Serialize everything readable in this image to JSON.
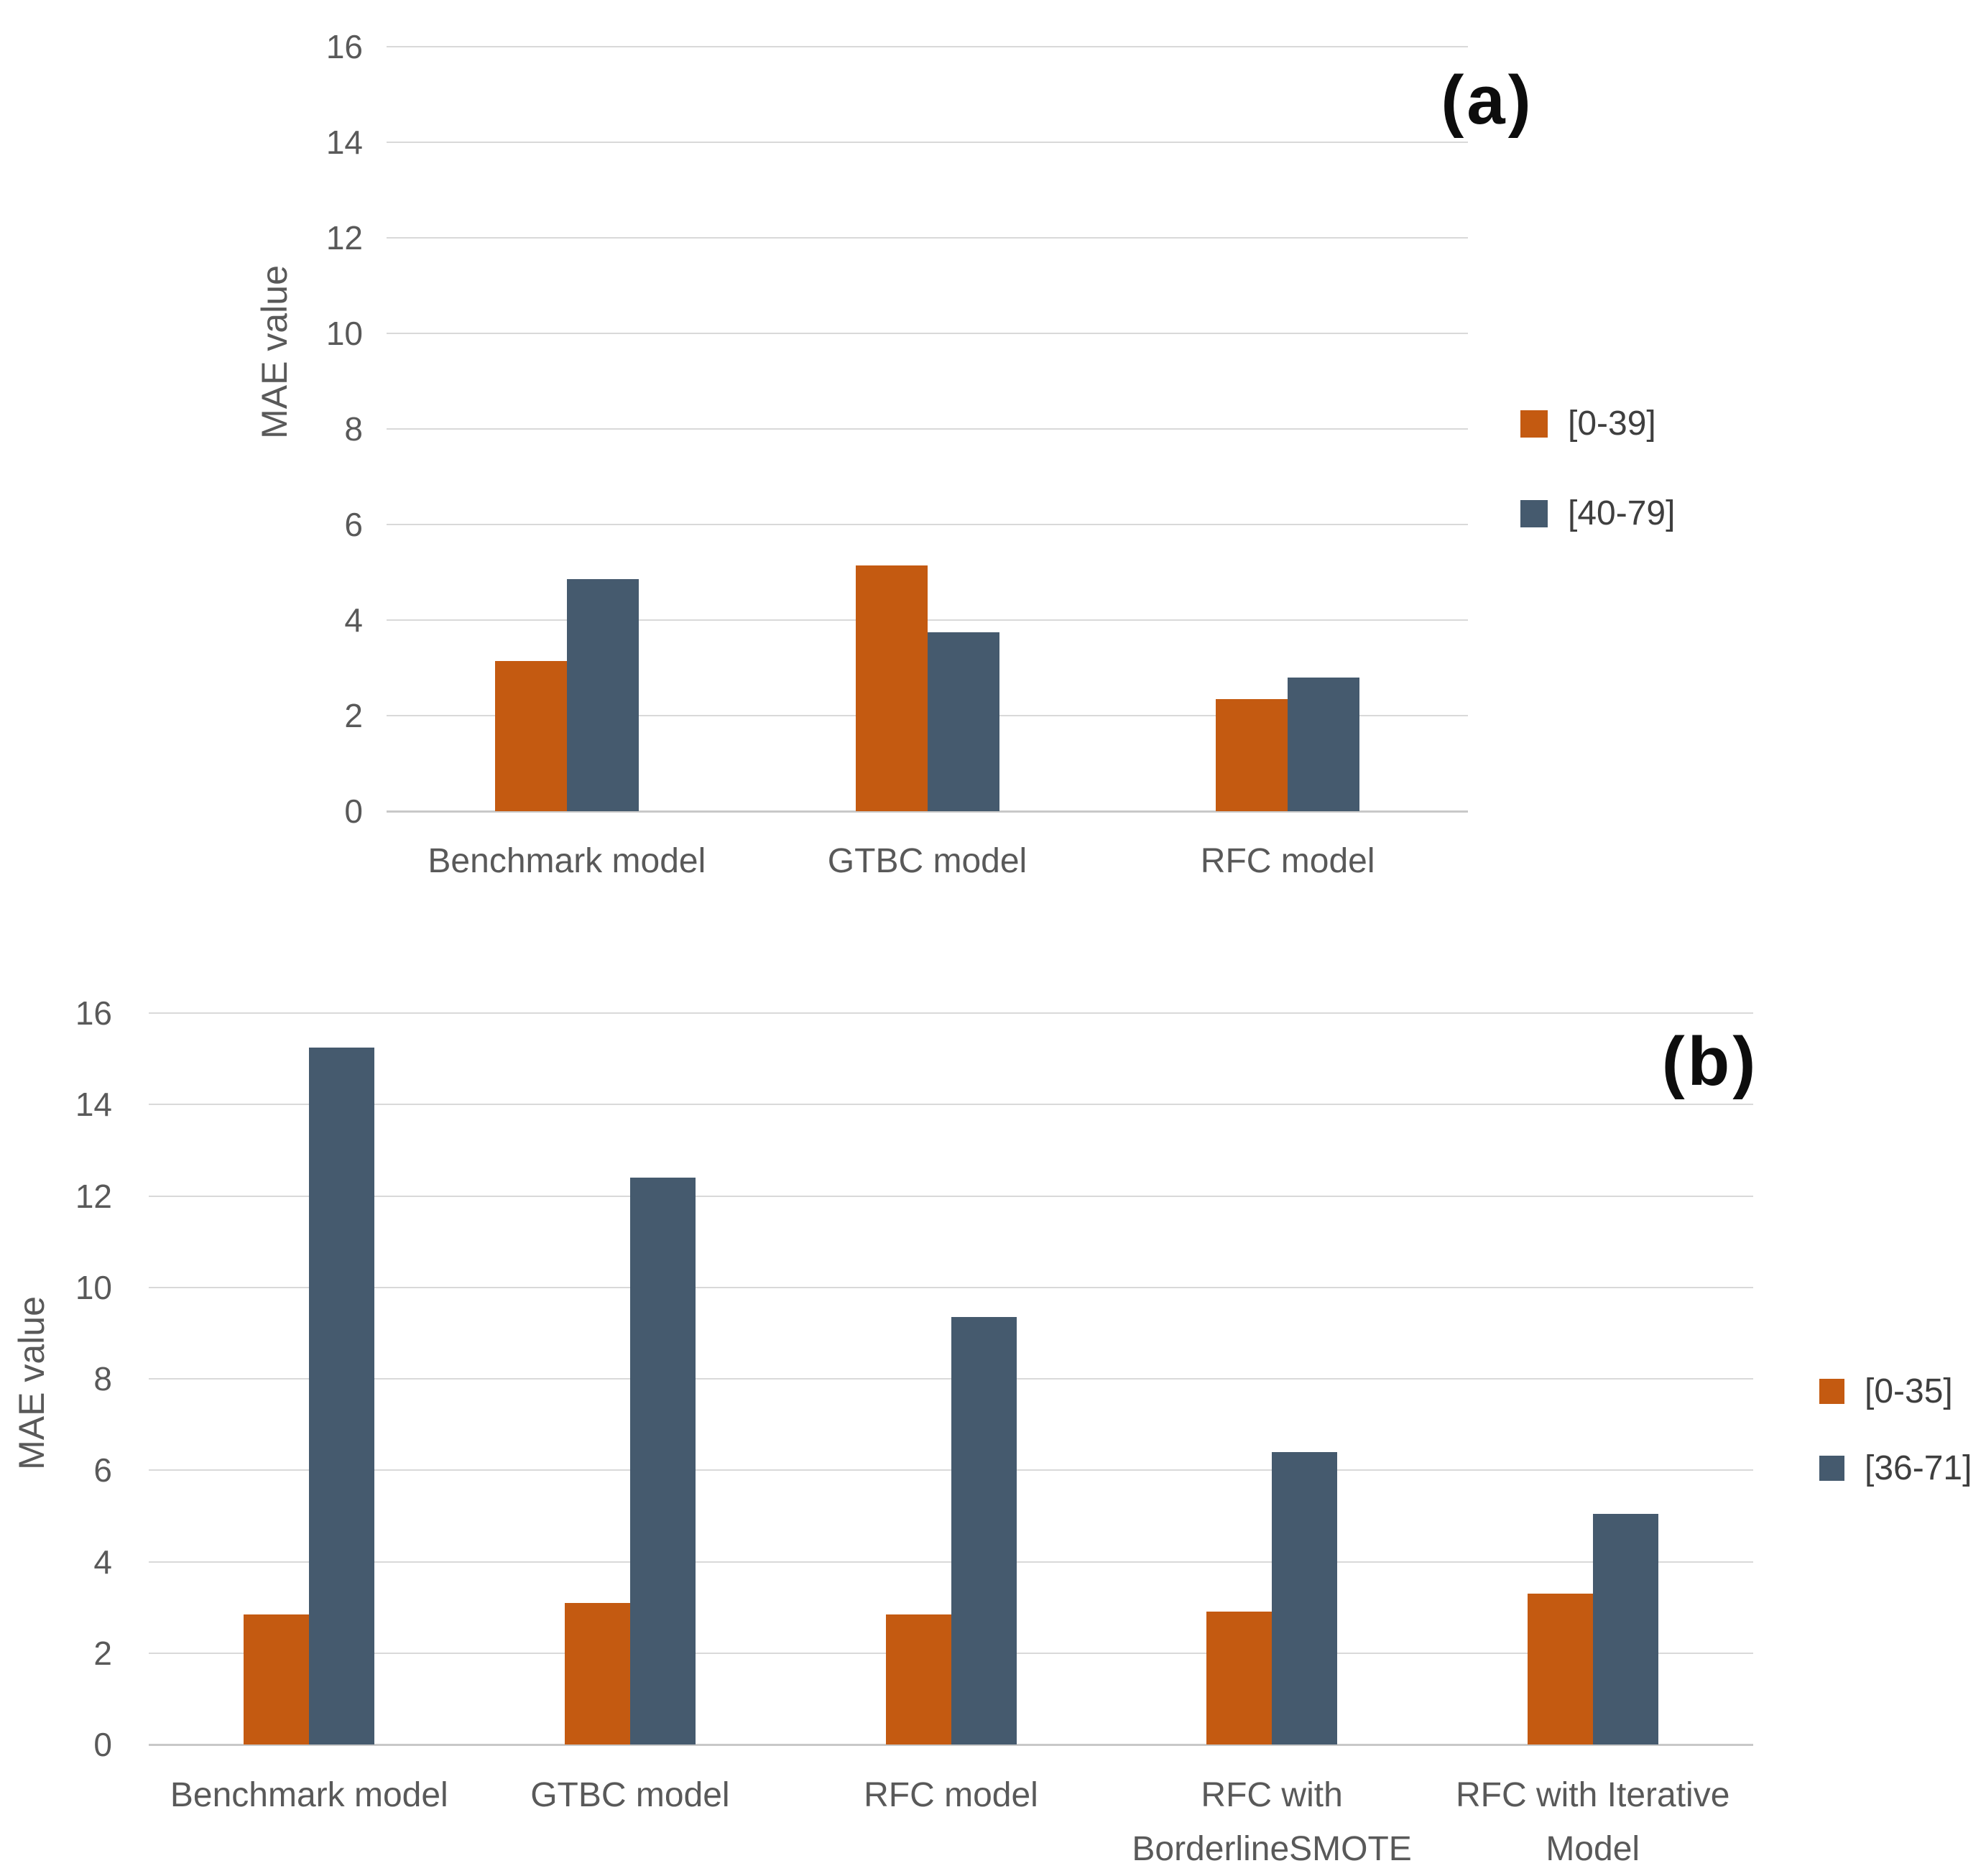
{
  "figure": {
    "background": "#ffffff",
    "panel_count": 2
  },
  "colors": {
    "series_orange": "#C45A11",
    "series_blue": "#455A6E",
    "gridline": "#d9d9d9",
    "axis_line": "#c8c8c8",
    "tick_text": "#595959",
    "legend_text": "#3f3f3f",
    "panel_label_text": "#0d0d0d"
  },
  "chart_data": [
    {
      "type": "bar",
      "panel_label": "(a)",
      "title": "",
      "xlabel": "",
      "ylabel": "MAE value",
      "ylim": [
        0,
        16
      ],
      "ytick_step": 2,
      "ytick_labels": [
        "0",
        "2",
        "4",
        "6",
        "8",
        "10",
        "12",
        "14",
        "16"
      ],
      "grid": true,
      "legend_position": "right",
      "categories": [
        "Benchmark model",
        "GTBC model",
        "RFC model"
      ],
      "series": [
        {
          "name": "[0-39]",
          "color": "#C45A11",
          "values": [
            3.15,
            5.15,
            2.35
          ]
        },
        {
          "name": "[40-79]",
          "color": "#455A6E",
          "values": [
            4.85,
            3.75,
            2.8
          ]
        }
      ]
    },
    {
      "type": "bar",
      "panel_label": "(b)",
      "title": "",
      "xlabel": "",
      "ylabel": "MAE value",
      "ylim": [
        0,
        16
      ],
      "ytick_step": 2,
      "ytick_labels": [
        "0",
        "2",
        "4",
        "6",
        "8",
        "10",
        "12",
        "14",
        "16"
      ],
      "grid": true,
      "legend_position": "right",
      "categories": [
        "Benchmark model",
        "GTBC model",
        "RFC model",
        "RFC with\nBorderlineSMOTE",
        "RFC with Iterative\nModel"
      ],
      "series": [
        {
          "name": "[0-35]",
          "color": "#C45A11",
          "values": [
            2.85,
            3.1,
            2.85,
            2.9,
            3.3
          ]
        },
        {
          "name": "[36-71]",
          "color": "#455A6E",
          "values": [
            15.25,
            12.4,
            9.35,
            6.4,
            5.05
          ]
        }
      ]
    }
  ]
}
